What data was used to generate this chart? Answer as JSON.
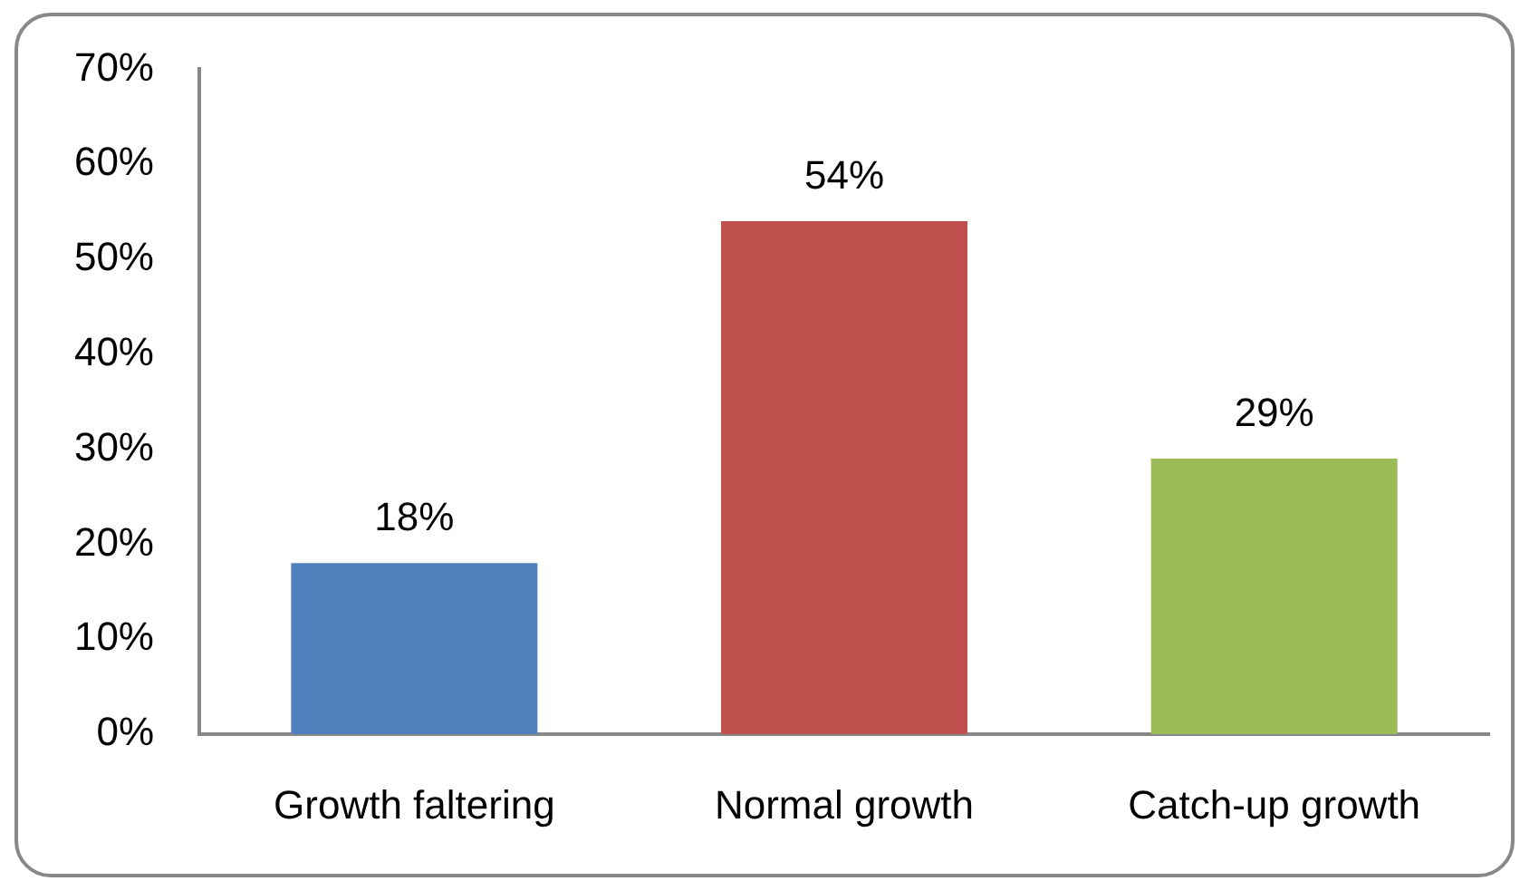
{
  "chart_data": {
    "type": "bar",
    "categories": [
      "Growth faltering",
      "Normal growth",
      "Catch-up growth"
    ],
    "values": [
      18,
      54,
      29
    ],
    "colors": [
      "#4f81bd",
      "#c0504d",
      "#9bbb59"
    ],
    "value_labels": [
      "18%",
      "54%",
      "29%"
    ],
    "ylim": [
      0,
      70
    ],
    "yticks": [
      {
        "value": 0,
        "label": "0%"
      },
      {
        "value": 10,
        "label": "10%"
      },
      {
        "value": 20,
        "label": "20%"
      },
      {
        "value": 30,
        "label": "30%"
      },
      {
        "value": 40,
        "label": "40%"
      },
      {
        "value": 50,
        "label": "50%"
      },
      {
        "value": 60,
        "label": "60%"
      },
      {
        "value": 70,
        "label": "70%"
      }
    ],
    "grid": false,
    "legend": false
  }
}
